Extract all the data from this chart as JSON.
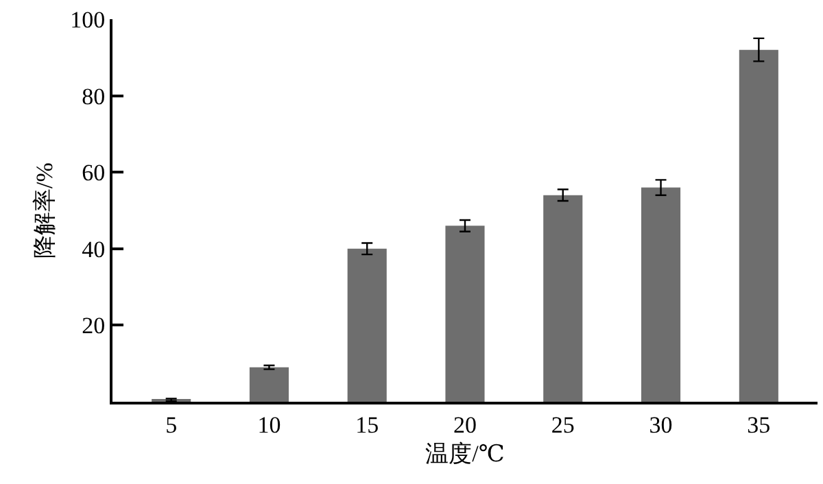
{
  "chart_data": {
    "type": "bar",
    "xlabel": "温度/℃",
    "ylabel": "降解率/%",
    "categories": [
      "5",
      "10",
      "15",
      "20",
      "25",
      "30",
      "35"
    ],
    "values": [
      0.5,
      9,
      40,
      46,
      54,
      56,
      92
    ],
    "errors": [
      0.3,
      0.5,
      1.5,
      1.5,
      1.5,
      2,
      3
    ],
    "color": "#6e6e6e",
    "ylim": [
      0,
      100
    ],
    "yticks": [
      20,
      40,
      60,
      80,
      100
    ],
    "grid": false
  }
}
